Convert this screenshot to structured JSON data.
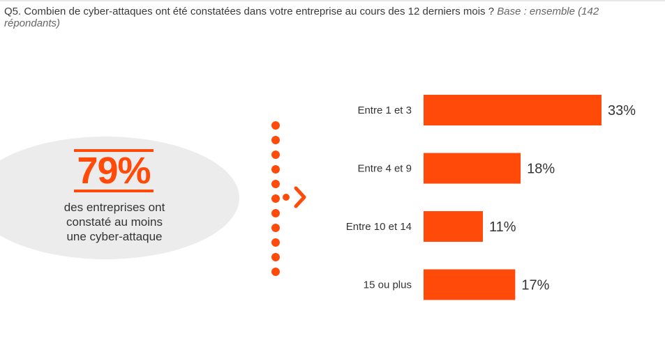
{
  "question": {
    "text": "Q5. Combien de cyber-attaques ont été constatées dans votre entreprise au cours des 12 derniers mois ? ",
    "base": "Base : ensemble (142 répondants)"
  },
  "highlight": {
    "value": "79%",
    "line1": "des entreprises ont",
    "line2": "constaté au moins",
    "line3": "une cyber-attaque"
  },
  "colors": {
    "accent": "#ff4a0a",
    "ellipse": "#ececec"
  },
  "chart_data": {
    "type": "bar",
    "orientation": "horizontal",
    "categories": [
      "Entre 1 et 3",
      "Entre 4 et 9",
      "Entre 10 et 14",
      "15 ou plus"
    ],
    "values": [
      33,
      18,
      11,
      17
    ],
    "labels": [
      "33%",
      "18%",
      "11%",
      "17%"
    ],
    "unit": "%",
    "xlim": [
      0,
      33
    ],
    "grid": false,
    "legend": "none"
  }
}
